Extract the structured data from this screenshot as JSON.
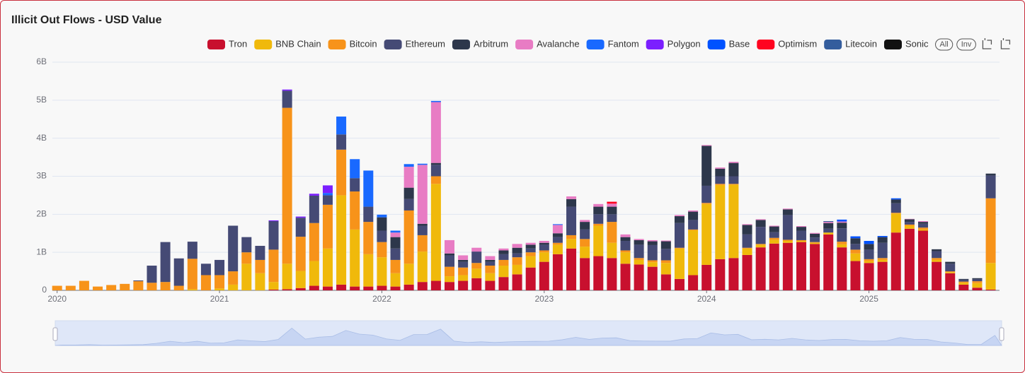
{
  "chart_data": {
    "type": "bar",
    "stacked": true,
    "title": "Illicit Out Flows - USD Value",
    "controls": [
      "All",
      "Inv"
    ],
    "categories": [
      "2020",
      null,
      null,
      null,
      null,
      null,
      null,
      null,
      null,
      null,
      null,
      null,
      "2021",
      null,
      null,
      null,
      null,
      null,
      null,
      null,
      null,
      null,
      null,
      null,
      "2022",
      null,
      null,
      null,
      null,
      null,
      null,
      null,
      null,
      null,
      null,
      null,
      "2023",
      null,
      null,
      null,
      null,
      null,
      null,
      null,
      null,
      null,
      null,
      null,
      "2024",
      null,
      null,
      null,
      null,
      null,
      null,
      null,
      null,
      null,
      null,
      null,
      "2025",
      null,
      null,
      null,
      null,
      null,
      null,
      null,
      null,
      null
    ],
    "ylim": [
      0,
      6
    ],
    "yticks": [
      0,
      {
        "value": 1,
        "label": "1B"
      },
      {
        "value": 2,
        "label": "2B"
      },
      {
        "value": 3,
        "label": "3B"
      },
      {
        "value": 4,
        "label": "4B"
      },
      {
        "value": 5,
        "label": "5B"
      },
      {
        "value": 6,
        "label": "6B"
      }
    ],
    "grid": true,
    "legend": "top-right",
    "series": [
      {
        "name": "Tron",
        "color": "#c8102e",
        "values": [
          0,
          0,
          0,
          0,
          0,
          0,
          0,
          0,
          0,
          0,
          0,
          0,
          0,
          0,
          0,
          0,
          0.02,
          0.03,
          0.06,
          0.12,
          0.1,
          0.15,
          0.1,
          0.1,
          0.12,
          0.1,
          0.15,
          0.22,
          0.25,
          0.22,
          0.25,
          0.32,
          0.25,
          0.35,
          0.42,
          0.6,
          0.75,
          0.95,
          1.1,
          0.85,
          0.9,
          0.85,
          0.7,
          0.68,
          0.62,
          0.42,
          0.3,
          0.4,
          0.67,
          0.82,
          0.85,
          0.93,
          1.13,
          1.23,
          1.25,
          1.27,
          1.22,
          1.47,
          1.13,
          0.77,
          0.72,
          0.75,
          1.52,
          1.62,
          1.57,
          0.75,
          0.45,
          0.15,
          0.07,
          0.02
        ]
      },
      {
        "name": "BNB Chain",
        "color": "#f0b90b",
        "values": [
          0,
          0,
          0,
          0,
          0,
          0,
          0,
          0,
          0,
          0,
          0.03,
          0,
          0.05,
          0.15,
          0.7,
          0.45,
          0.2,
          0.67,
          0.45,
          0.65,
          1.0,
          2.35,
          1.5,
          0.85,
          0.75,
          0.35,
          0.55,
          0.8,
          2.55,
          0.15,
          0.15,
          0.25,
          0.2,
          0.3,
          0.25,
          0.3,
          0.25,
          0.25,
          0.25,
          0.3,
          0.8,
          0.4,
          0.3,
          0.12,
          0.12,
          0.3,
          0.8,
          1.18,
          1.6,
          1.95,
          1.93,
          0.17,
          0.07,
          0.1,
          0.05,
          0.03,
          0.03,
          0.05,
          0.08,
          0.2,
          0.05,
          0.05,
          0.5,
          0.08,
          0.03,
          0.05,
          0.03,
          0.05,
          0.12,
          0.7
        ]
      },
      {
        "name": "Bitcoin",
        "color": "#f7931a",
        "values": [
          0.12,
          0.12,
          0.25,
          0.1,
          0.14,
          0.17,
          0.24,
          0.2,
          0.22,
          0.12,
          0.8,
          0.4,
          0.35,
          0.35,
          0.3,
          0.35,
          0.85,
          4.1,
          0.9,
          1.0,
          1.15,
          1.2,
          1.0,
          0.85,
          0.4,
          0.35,
          1.4,
          0.43,
          0.2,
          0.25,
          0.2,
          0.15,
          0.2,
          0.15,
          0.2,
          0.1,
          0.05,
          0.05,
          0.1,
          0.2,
          0.05,
          0.55,
          0.05,
          0.05,
          0.05,
          0.07,
          0.02,
          0.02,
          0.03,
          0.03,
          0.02,
          0.02,
          0.02,
          0.05,
          0.03,
          0.02,
          0.02,
          0,
          0.07,
          0.1,
          0.05,
          0.05,
          0.02,
          0.03,
          0.05,
          0.05,
          0.02,
          0.03,
          0.05,
          1.7
        ]
      },
      {
        "name": "Ethereum",
        "color": "#454a75",
        "values": [
          0,
          0,
          0,
          0,
          0,
          0,
          0.02,
          0.45,
          1.05,
          0.72,
          0.45,
          0.3,
          0.4,
          1.2,
          0.4,
          0.37,
          0.75,
          0.45,
          0.5,
          0.72,
          0.25,
          0.4,
          0.35,
          0.4,
          0.3,
          0.3,
          0.3,
          0.25,
          0.3,
          0.3,
          0.15,
          0.3,
          0.1,
          0.15,
          0.1,
          0.1,
          0.15,
          0.15,
          0.75,
          0.25,
          0.25,
          0.2,
          0.25,
          0.35,
          0.4,
          0.3,
          0.65,
          0.25,
          0.45,
          0.2,
          0.2,
          0.35,
          0.45,
          0.15,
          0.65,
          0.25,
          0.12,
          0.1,
          0.35,
          0.15,
          0.25,
          0.4,
          0.25,
          0.07,
          0.1,
          0.18,
          0.2,
          0.05,
          0.05,
          0.6
        ]
      },
      {
        "name": "Arbitrum",
        "color": "#2d374b",
        "values": [
          0,
          0,
          0,
          0,
          0,
          0,
          0,
          0,
          0,
          0,
          0,
          0,
          0,
          0,
          0,
          0,
          0,
          0,
          0,
          0,
          0,
          0,
          0,
          0,
          0.35,
          0.3,
          0.3,
          0.05,
          0.05,
          0.05,
          0.05,
          0,
          0.05,
          0.1,
          0.15,
          0.1,
          0.05,
          0.1,
          0.2,
          0.2,
          0.2,
          0.2,
          0.1,
          0.12,
          0.1,
          0.2,
          0.18,
          0.22,
          1.05,
          0.2,
          0.35,
          0.25,
          0.18,
          0.15,
          0.15,
          0.1,
          0.1,
          0.15,
          0.15,
          0.15,
          0.15,
          0.15,
          0.1,
          0.07,
          0.05,
          0.05,
          0.05,
          0.02,
          0.03,
          0.05
        ]
      },
      {
        "name": "Avalanche",
        "color": "#e87cc4",
        "values": [
          0,
          0,
          0,
          0,
          0,
          0,
          0,
          0,
          0,
          0,
          0,
          0,
          0,
          0,
          0,
          0,
          0,
          0,
          0,
          0,
          0,
          0,
          0,
          0,
          0,
          0.12,
          0.55,
          1.55,
          1.6,
          0.35,
          0.12,
          0.1,
          0.1,
          0.05,
          0.1,
          0.05,
          0.05,
          0.22,
          0.07,
          0.05,
          0.07,
          0.08,
          0.07,
          0.03,
          0.03,
          0.02,
          0.03,
          0.03,
          0.02,
          0.03,
          0.03,
          0.02,
          0.02,
          0.02,
          0.02,
          0.02,
          0.02,
          0.03,
          0.03,
          0,
          0,
          0,
          0,
          0.01,
          0.02,
          0,
          0,
          0,
          0,
          0
        ]
      },
      {
        "name": "Fantom",
        "color": "#1969ff",
        "values": [
          0,
          0,
          0,
          0,
          0,
          0,
          0,
          0,
          0,
          0,
          0,
          0,
          0,
          0,
          0,
          0,
          0,
          0,
          0,
          0,
          0.06,
          0.47,
          0.5,
          0.95,
          0.07,
          0.05,
          0.07,
          0.03,
          0.03,
          0,
          0,
          0,
          0,
          0,
          0,
          0,
          0,
          0.02,
          0,
          0,
          0,
          0,
          0,
          0,
          0,
          0,
          0,
          0,
          0,
          0,
          0,
          0,
          0,
          0,
          0,
          0,
          0,
          0,
          0,
          0,
          0,
          0,
          0,
          0,
          0,
          0,
          0,
          0,
          0,
          0
        ]
      },
      {
        "name": "Polygon",
        "color": "#7b1fff",
        "values": [
          0,
          0,
          0,
          0,
          0,
          0,
          0,
          0,
          0,
          0,
          0,
          0,
          0,
          0,
          0,
          0,
          0.02,
          0.03,
          0.03,
          0.05,
          0.2,
          0,
          0,
          0,
          0,
          0,
          0,
          0,
          0,
          0,
          0,
          0,
          0,
          0,
          0,
          0,
          0,
          0,
          0,
          0,
          0,
          0,
          0,
          0,
          0,
          0,
          0,
          0,
          0,
          0,
          0,
          0,
          0,
          0,
          0,
          0,
          0,
          0,
          0,
          0,
          0,
          0,
          0,
          0,
          0,
          0,
          0,
          0,
          0,
          0
        ]
      },
      {
        "name": "Base",
        "color": "#0052ff",
        "values": [
          0,
          0,
          0,
          0,
          0,
          0,
          0,
          0,
          0,
          0,
          0,
          0,
          0,
          0,
          0,
          0,
          0,
          0,
          0,
          0,
          0,
          0,
          0,
          0,
          0,
          0,
          0,
          0,
          0,
          0,
          0,
          0,
          0,
          0,
          0,
          0,
          0,
          0,
          0,
          0,
          0,
          0,
          0,
          0,
          0,
          0,
          0,
          0,
          0,
          0,
          0,
          0,
          0,
          0,
          0,
          0,
          0,
          0,
          0.05,
          0.05,
          0.08,
          0.03,
          0.03,
          0,
          0,
          0,
          0,
          0,
          0,
          0
        ]
      },
      {
        "name": "Optimism",
        "color": "#ff0420",
        "values": [
          0,
          0,
          0,
          0,
          0,
          0,
          0,
          0,
          0,
          0,
          0,
          0,
          0,
          0,
          0,
          0,
          0,
          0,
          0,
          0,
          0,
          0,
          0,
          0,
          0,
          0,
          0,
          0,
          0,
          0,
          0,
          0,
          0,
          0,
          0,
          0,
          0,
          0,
          0,
          0,
          0,
          0.05,
          0,
          0,
          0,
          0,
          0,
          0,
          0,
          0,
          0,
          0,
          0,
          0,
          0,
          0,
          0,
          0,
          0,
          0,
          0,
          0,
          0,
          0,
          0,
          0,
          0,
          0,
          0,
          0
        ]
      },
      {
        "name": "Litecoin",
        "color": "#345d9d",
        "values": [
          0,
          0,
          0,
          0,
          0,
          0,
          0,
          0,
          0,
          0,
          0,
          0,
          0,
          0,
          0,
          0,
          0,
          0,
          0,
          0,
          0,
          0,
          0,
          0,
          0,
          0,
          0,
          0,
          0,
          0,
          0,
          0,
          0,
          0,
          0,
          0,
          0,
          0,
          0,
          0,
          0,
          0,
          0,
          0,
          0,
          0,
          0,
          0,
          0,
          0,
          0,
          0,
          0,
          0,
          0,
          0,
          0,
          0.02,
          0,
          0,
          0,
          0,
          0,
          0,
          0,
          0,
          0,
          0,
          0,
          0
        ]
      },
      {
        "name": "Sonic",
        "color": "#111111",
        "values": [
          0,
          0,
          0,
          0,
          0,
          0,
          0,
          0,
          0,
          0,
          0,
          0,
          0,
          0,
          0,
          0,
          0,
          0,
          0,
          0,
          0,
          0,
          0,
          0,
          0,
          0,
          0,
          0,
          0,
          0,
          0,
          0,
          0,
          0,
          0,
          0,
          0,
          0,
          0,
          0,
          0,
          0,
          0,
          0,
          0,
          0,
          0,
          0,
          0,
          0,
          0,
          0,
          0,
          0,
          0,
          0,
          0,
          0,
          0,
          0,
          0,
          0,
          0,
          0,
          0,
          0,
          0,
          0,
          0,
          0
        ]
      }
    ]
  }
}
